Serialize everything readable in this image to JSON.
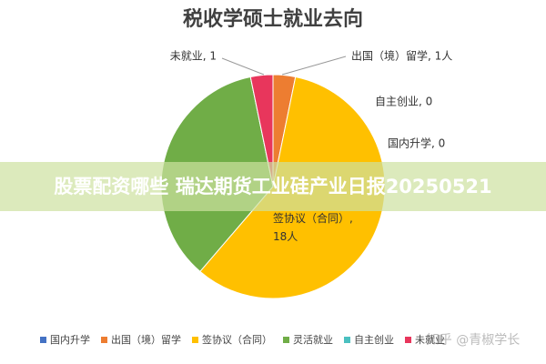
{
  "chart_data": {
    "type": "pie",
    "title": "税收学硕士就业去向",
    "categories": [
      "国内升学",
      "出国（境）留学",
      "签协议（合同）",
      "灵活就业",
      "自主创业",
      "未就业"
    ],
    "values": [
      0,
      1,
      18,
      11,
      0,
      1
    ],
    "value_labels": [
      "国内升学, 0",
      "出国（境）留学, 1人",
      "签协议（合同）, 18人",
      null,
      "自主创业, 0",
      "未就业, 1"
    ],
    "colors": [
      "#4472c4",
      "#ed7d31",
      "#ffc000",
      "#70ad47",
      "#4bc0c0",
      "#e8365c"
    ],
    "legend": "bottom"
  },
  "banner": "股票配资哪些 瑞达期货工业硅产业日报20250521",
  "watermark": "知乎 @青椒学长"
}
